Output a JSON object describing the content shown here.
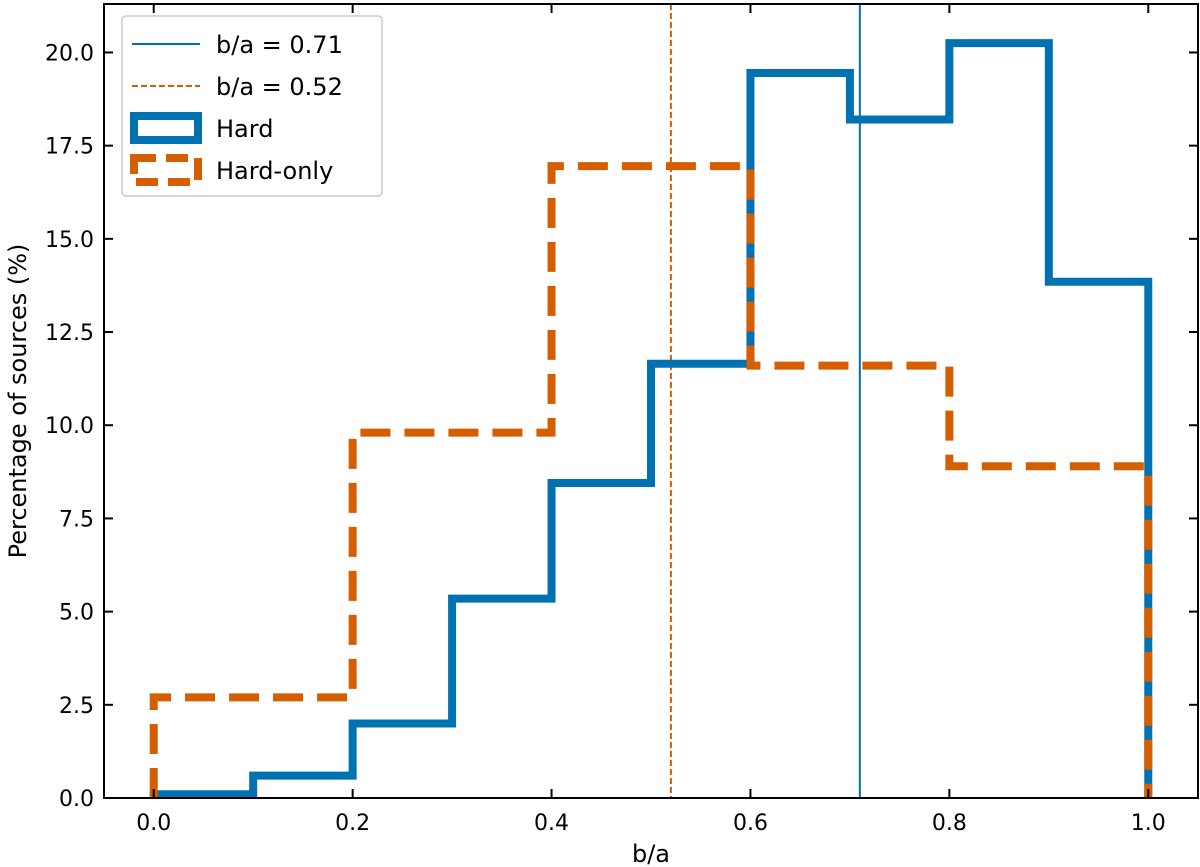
{
  "chart_data": {
    "type": "step-histogram",
    "xlabel": "b/a",
    "ylabel": "Percentage of sources (%)",
    "xlim": [
      -0.05,
      1.05
    ],
    "ylim": [
      0,
      21.3
    ],
    "xticks": [
      0.0,
      0.2,
      0.4,
      0.6,
      0.8,
      1.0
    ],
    "xtick_labels": [
      "0.0",
      "0.2",
      "0.4",
      "0.6",
      "0.8",
      "1.0"
    ],
    "yticks": [
      0,
      2.5,
      5,
      7.5,
      10,
      12.5,
      15,
      17.5,
      20
    ],
    "ytick_labels": [
      "0.0",
      "2.5",
      "5.0",
      "7.5",
      "10.0",
      "12.5",
      "15.0",
      "17.5",
      "20.0"
    ],
    "grid": false,
    "legend_position": "top-left",
    "series": [
      {
        "name": "Hard",
        "style": "solid",
        "color": "#0072B2",
        "bin_edges": [
          0.0,
          0.1,
          0.2,
          0.3,
          0.4,
          0.5,
          0.6,
          0.7,
          0.8,
          0.9,
          1.0
        ],
        "values": [
          0.1,
          0.6,
          2.0,
          5.35,
          8.45,
          11.65,
          19.45,
          18.2,
          20.25,
          13.85
        ]
      },
      {
        "name": "Hard-only",
        "style": "dashed",
        "color": "#D55E00",
        "bin_edges": [
          0.0,
          0.2,
          0.4,
          0.6,
          0.8,
          1.0
        ],
        "values": [
          2.7,
          9.8,
          16.95,
          11.6,
          8.9
        ]
      }
    ],
    "vlines": [
      {
        "label": "b/a = 0.71",
        "x": 0.71,
        "style": "solid",
        "color": "#0072B2"
      },
      {
        "label": "b/a = 0.52",
        "x": 0.52,
        "style": "dashed",
        "color": "#D55E00"
      }
    ]
  }
}
